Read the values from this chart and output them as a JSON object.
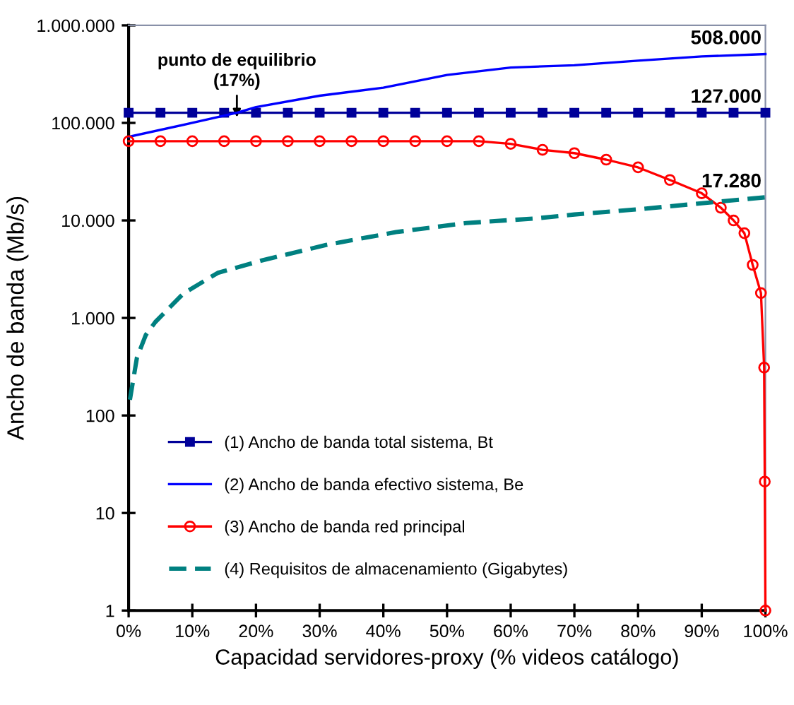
{
  "chart_data": {
    "type": "line",
    "xlabel": "Capacidad servidores-proxy (% videos catálogo)",
    "ylabel": "Ancho de banda (Mb/s)",
    "log": "y",
    "grid": false,
    "legend": "bottom left",
    "xlim": [
      0,
      100
    ],
    "ylim": [
      1,
      1000000
    ],
    "xticks": [
      {
        "value": 0,
        "label": "0%"
      },
      {
        "value": 10,
        "label": "10%"
      },
      {
        "value": 20,
        "label": "20%"
      },
      {
        "value": 30,
        "label": "30%"
      },
      {
        "value": 40,
        "label": "40%"
      },
      {
        "value": 50,
        "label": "50%"
      },
      {
        "value": 60,
        "label": "60%"
      },
      {
        "value": 70,
        "label": "70%"
      },
      {
        "value": 80,
        "label": "80%"
      },
      {
        "value": 90,
        "label": "90%"
      },
      {
        "value": 100,
        "label": "100%"
      }
    ],
    "yticks": [
      {
        "value": 1,
        "label": "1"
      },
      {
        "value": 10,
        "label": "10"
      },
      {
        "value": 100,
        "label": "100"
      },
      {
        "value": 1000,
        "label": "1.000"
      },
      {
        "value": 10000,
        "label": "10.000"
      },
      {
        "value": 100000,
        "label": "100.000"
      },
      {
        "value": 1000000,
        "label": "1.000.000"
      }
    ],
    "series": [
      {
        "name": "(1) Ancho de banda total sistema, Bt",
        "color": "#000099",
        "marker": "square",
        "line_style": "solid",
        "x": [
          0,
          5,
          10,
          15,
          20,
          25,
          30,
          35,
          40,
          45,
          50,
          55,
          60,
          65,
          70,
          75,
          80,
          85,
          90,
          95,
          100
        ],
        "values": [
          127000,
          127000,
          127000,
          127000,
          127000,
          127000,
          127000,
          127000,
          127000,
          127000,
          127000,
          127000,
          127000,
          127000,
          127000,
          127000,
          127000,
          127000,
          127000,
          127000,
          127000
        ],
        "value_labels": [
          null,
          null,
          null,
          null,
          null,
          null,
          null,
          null,
          null,
          null,
          null,
          null,
          null,
          null,
          null,
          null,
          null,
          null,
          null,
          null,
          "127.000"
        ]
      },
      {
        "name": "(2) Ancho de banda efectivo sistema, Be",
        "color": "#0000ff",
        "marker": "none",
        "line_style": "solid",
        "x": [
          0,
          10,
          17,
          20,
          30,
          40,
          50,
          60,
          70,
          80,
          90,
          100
        ],
        "values": [
          72000,
          100000,
          127000,
          145000,
          190000,
          230000,
          310000,
          370000,
          390000,
          435000,
          480000,
          508000
        ],
        "value_labels": [
          null,
          null,
          null,
          null,
          null,
          null,
          null,
          null,
          null,
          null,
          null,
          "508.000"
        ]
      },
      {
        "name": "(3) Ancho de banda red principal",
        "color": "#ff0000",
        "marker": "circle",
        "line_style": "solid",
        "x": [
          0,
          5,
          10,
          15,
          20,
          25,
          30,
          35,
          40,
          45,
          50,
          55,
          60,
          65,
          70,
          75,
          80,
          85,
          90,
          93,
          95,
          96.7,
          98,
          99.3,
          99.8,
          99.9,
          100
        ],
        "values": [
          65000,
          65000,
          65000,
          65000,
          65000,
          65000,
          65000,
          65000,
          65000,
          65000,
          65000,
          65000,
          61000,
          53000,
          49000,
          42000,
          35000,
          26000,
          19000,
          13500,
          10000,
          7400,
          3500,
          1800,
          310,
          21,
          1
        ]
      },
      {
        "name": "(4) Requisitos de almacenamiento (Gigabytes)",
        "color": "#008080",
        "marker": "none",
        "line_style": "dashed",
        "x": [
          0.2,
          1.3,
          2.7,
          4.2,
          8.6,
          14,
          21,
          31,
          42,
          53,
          64,
          70,
          80,
          90,
          100
        ],
        "values": [
          145,
          390,
          670,
          910,
          1780,
          2900,
          3900,
          5600,
          7600,
          9400,
          10500,
          11500,
          13000,
          15000,
          17280
        ],
        "value_labels": [
          null,
          null,
          null,
          null,
          null,
          null,
          null,
          null,
          null,
          null,
          null,
          null,
          null,
          null,
          "17.280"
        ]
      }
    ],
    "annotations": [
      "punto de equilibrio\n(17%)"
    ]
  }
}
